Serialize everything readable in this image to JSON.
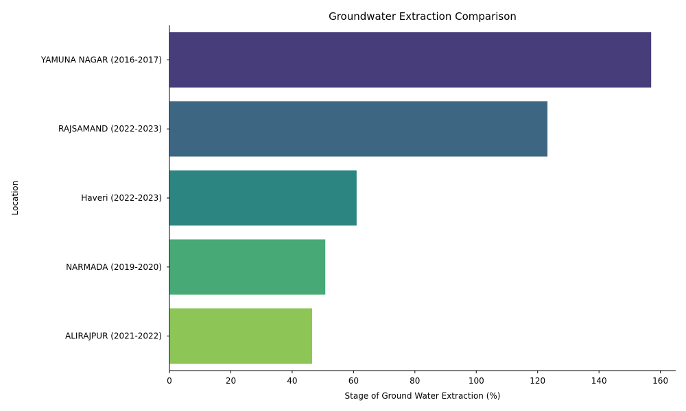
{
  "chart_data": {
    "type": "bar",
    "orientation": "horizontal",
    "title": "Groundwater Extraction Comparison",
    "xlabel": "Stage of Ground Water Extraction (%)",
    "ylabel": "Location",
    "xlim": [
      0,
      165
    ],
    "xticks": [
      0,
      20,
      40,
      60,
      80,
      100,
      120,
      140,
      160
    ],
    "grid": false,
    "categories": [
      "YAMUNA NAGAR (2016-2017)",
      "RAJSAMAND (2022-2023)",
      "Haveri (2022-2023)",
      "NARMADA (2019-2020)",
      "ALIRAJPUR (2021-2022)"
    ],
    "values": [
      157,
      123.2,
      61,
      50.8,
      46.5
    ],
    "colors": [
      "#483d7b",
      "#3d6683",
      "#2c8580",
      "#46a976",
      "#8dc556"
    ]
  }
}
